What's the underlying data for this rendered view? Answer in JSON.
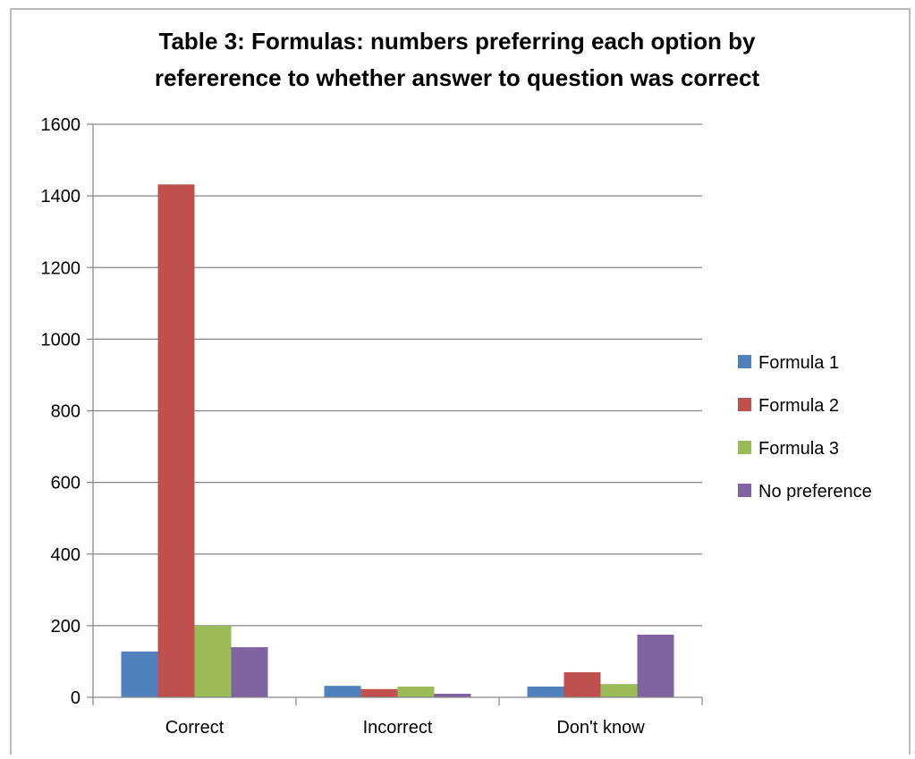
{
  "chart_data": {
    "type": "bar",
    "title_lines": [
      "Table 3: Formulas: numbers preferring each option by",
      "refererence to whether answer to question was correct"
    ],
    "categories": [
      "Correct",
      "Incorrect",
      "Don't know"
    ],
    "series": [
      {
        "name": "Formula 1",
        "color": "#4f81bd",
        "values": [
          128,
          32,
          30
        ]
      },
      {
        "name": "Formula 2",
        "color": "#c0504d",
        "values": [
          1432,
          23,
          70
        ]
      },
      {
        "name": "Formula 3",
        "color": "#9bbb59",
        "values": [
          200,
          30,
          37
        ]
      },
      {
        "name": "No preference",
        "color": "#8064a2",
        "values": [
          140,
          10,
          175
        ]
      }
    ],
    "y_ticks": [
      "0",
      "200",
      "400",
      "600",
      "800",
      "1000",
      "1200",
      "1400",
      "1600"
    ],
    "ylim": [
      0,
      1600
    ],
    "xlabel": "",
    "ylabel": "",
    "grid": true,
    "legend_position": "right"
  }
}
